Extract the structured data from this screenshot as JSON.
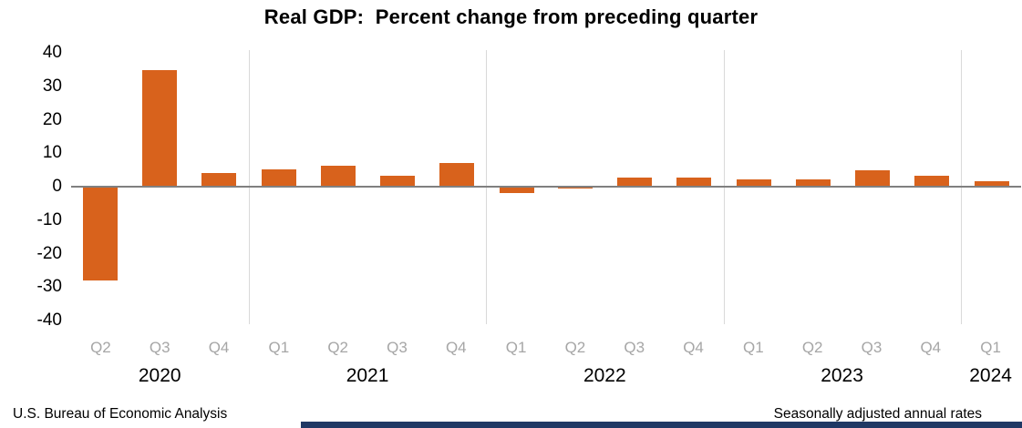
{
  "title": {
    "text": "Real GDP:  Percent change from preceding quarter"
  },
  "footer": {
    "left": "U.S. Bureau of Economic Analysis",
    "right": "Seasonally adjusted annual rates"
  },
  "colors": {
    "bar": "#D8621C",
    "axis_line": "#808080",
    "gridline": "#D9D9D9",
    "quarter_label": "#A6A6A6",
    "year_label": "#000000",
    "footer_bar": "#1F3864"
  },
  "chart_data": {
    "type": "bar",
    "title": "Real GDP:  Percent change from preceding quarter",
    "xlabel": "",
    "ylabel": "Percent change from preceding quarter",
    "ylim": [
      -40,
      40
    ],
    "yticks": [
      40,
      30,
      20,
      10,
      0,
      -10,
      -20,
      -30,
      -40
    ],
    "grid": "vertical year separators only",
    "legend": "none",
    "units": "Seasonally adjusted annual rates",
    "groups": [
      {
        "year": "2020",
        "quarters": [
          {
            "label": "Q2",
            "value": -28.0
          },
          {
            "label": "Q3",
            "value": 34.8
          },
          {
            "label": "Q4",
            "value": 4.2
          }
        ]
      },
      {
        "year": "2021",
        "quarters": [
          {
            "label": "Q1",
            "value": 5.2
          },
          {
            "label": "Q2",
            "value": 6.2
          },
          {
            "label": "Q3",
            "value": 3.3
          },
          {
            "label": "Q4",
            "value": 7.0
          }
        ]
      },
      {
        "year": "2022",
        "quarters": [
          {
            "label": "Q1",
            "value": -2.0
          },
          {
            "label": "Q2",
            "value": -0.6
          },
          {
            "label": "Q3",
            "value": 2.7
          },
          {
            "label": "Q4",
            "value": 2.6
          }
        ]
      },
      {
        "year": "2023",
        "quarters": [
          {
            "label": "Q1",
            "value": 2.2
          },
          {
            "label": "Q2",
            "value": 2.1
          },
          {
            "label": "Q3",
            "value": 4.9
          },
          {
            "label": "Q4",
            "value": 3.4
          }
        ]
      },
      {
        "year": "2024",
        "quarters": [
          {
            "label": "Q1",
            "value": 1.6
          }
        ]
      }
    ]
  }
}
